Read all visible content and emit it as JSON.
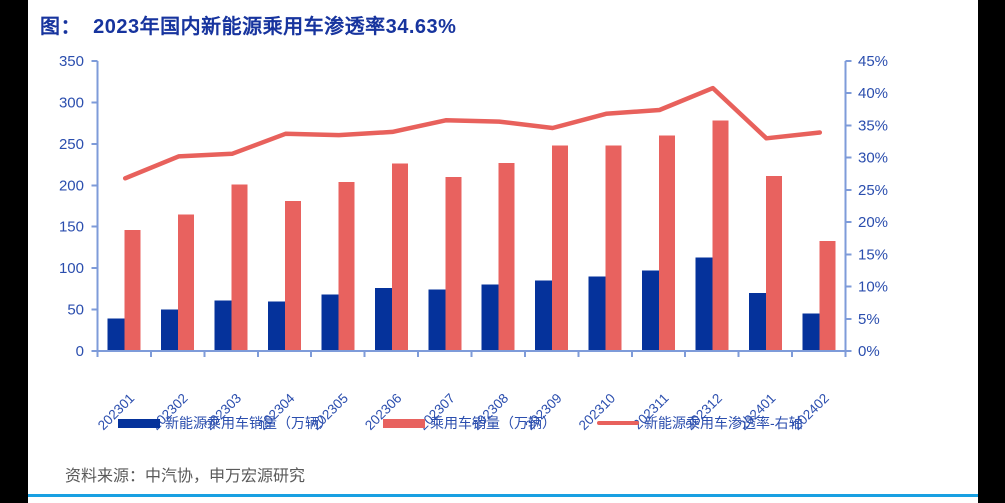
{
  "title": "图：  2023年国内新能源乘用车渗透率34.63%",
  "source": "资料来源：中汽协，申万宏源研究",
  "legend": [
    {
      "label": "新能源乘用车销量（万辆）",
      "swatch": "rect",
      "color": "#05329B"
    },
    {
      "label": "乘用车销量（万辆）",
      "swatch": "rect",
      "color": "#E8625F"
    },
    {
      "label": "新能源乘用车渗透率-右轴",
      "swatch": "line",
      "color": "#E8615C"
    }
  ],
  "chart_data": {
    "type": "bar+line",
    "categories": [
      "202301",
      "202302",
      "202303",
      "202304",
      "202305",
      "202306",
      "202307",
      "202308",
      "202309",
      "202310",
      "202311",
      "202312",
      "202401",
      "202402"
    ],
    "series": [
      {
        "name": "新能源乘用车销量（万辆）",
        "type": "bar",
        "axis": "left",
        "color": "#05329B",
        "values": [
          39,
          50,
          61,
          60,
          68,
          76,
          74,
          80,
          85,
          90,
          97,
          113,
          70,
          45
        ]
      },
      {
        "name": "乘用车销量（万辆）",
        "type": "bar",
        "axis": "left",
        "color": "#E8625F",
        "values": [
          146,
          165,
          201,
          181,
          204,
          226,
          210,
          227,
          248,
          248,
          260,
          278,
          211,
          133
        ]
      },
      {
        "name": "新能源乘用车渗透率-右轴",
        "type": "line",
        "axis": "right",
        "color": "#E8615C",
        "values": [
          26.8,
          30.2,
          30.6,
          33.7,
          33.5,
          34.0,
          35.8,
          35.6,
          34.6,
          36.8,
          37.4,
          40.8,
          33.0,
          33.9
        ]
      }
    ],
    "left_axis": {
      "min": 0,
      "max": 350,
      "step": 50
    },
    "right_axis": {
      "min": 0,
      "max": 45,
      "step": 5,
      "suffix": "%"
    },
    "grid": false,
    "legend_position": "bottom",
    "title": "2023年国内新能源乘用车渗透率34.63%"
  },
  "colors": {
    "title": "#17349E",
    "axis_line": "#7E9BD9",
    "tick_label": "#2B4EAE",
    "nev_bar": "#05329B",
    "pv_bar": "#E8625F",
    "penetration_line": "#E8615C",
    "source_text": "#595959",
    "bottom_rule": "#18A0E2",
    "side_strip": "#000000"
  }
}
